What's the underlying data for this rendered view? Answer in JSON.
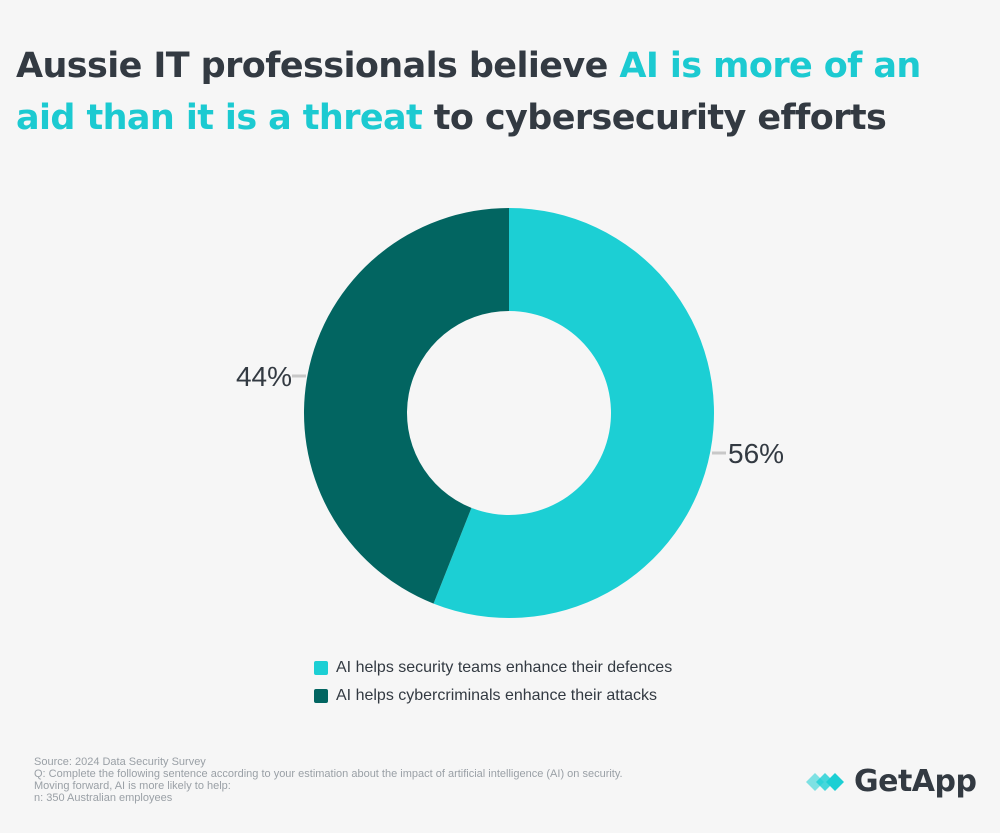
{
  "title": {
    "part1": "Aussie IT professionals believe ",
    "highlight": "AI is more of an aid than it is a threat",
    "part2": " to cybersecurity efforts"
  },
  "colors": {
    "defences": "#1ccfd4",
    "attacks": "#026561",
    "text": "#333a42",
    "accent": "#1ccad1",
    "leader": "#c8c8c8",
    "source_text": "#9aa0a6"
  },
  "chart_data": {
    "type": "pie",
    "donut": true,
    "series": [
      {
        "name": "AI helps security teams enhance their defences",
        "value": 56,
        "label": "56%",
        "color": "#1ccfd4"
      },
      {
        "name": "AI helps cybercriminals enhance their attacks",
        "value": 44,
        "label": "44%",
        "color": "#026561"
      }
    ],
    "legend_position": "bottom"
  },
  "legend": [
    {
      "label": "AI helps security teams enhance their defences",
      "color": "#1ccfd4"
    },
    {
      "label": "AI helps cybercriminals enhance their attacks",
      "color": "#026561"
    }
  ],
  "source": {
    "line1": "Source: 2024 Data Security Survey",
    "line2": "Q: Complete the following sentence according to your estimation about the impact of artificial intelligence (AI) on security.",
    "line3": "Moving forward, AI is more likely to help:",
    "line4": "n: 350 Australian employees"
  },
  "brand": {
    "name": "GetApp",
    "icon": "getapp-logo-icon"
  }
}
